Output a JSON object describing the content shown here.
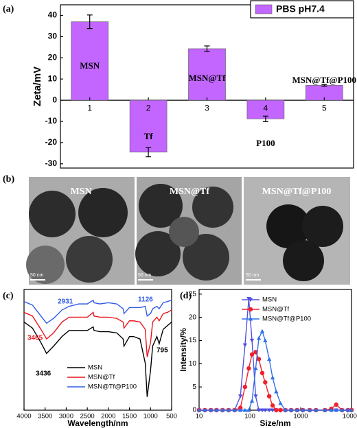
{
  "chart_data": [
    {
      "type": "bar",
      "panel_label": "(a)",
      "ylabel": "Zeta/mV",
      "categories": [
        "1",
        "2",
        "3",
        "4",
        "5"
      ],
      "bar_labels": [
        "MSN",
        "Tf",
        "MSN@Tf",
        "P100",
        "MSN@Tf@P100"
      ],
      "series": [
        {
          "name": "PBS pH7.4",
          "color": "#c266ff",
          "values": [
            37,
            -24.5,
            24.3,
            -8.8,
            7
          ],
          "errors": [
            3.2,
            2.2,
            1.3,
            1.3,
            0.4
          ]
        }
      ],
      "ylim": [
        -32,
        45
      ],
      "yticks": [
        -30,
        -20,
        -10,
        0,
        10,
        20,
        30,
        40
      ],
      "legend": "upper right"
    },
    {
      "type": "line",
      "panel_label": "(c)",
      "xlabel": "Wavelength/nm",
      "x": [
        4000,
        3800,
        3600,
        3465,
        3300,
        3100,
        2931,
        2700,
        2500,
        2360,
        2340,
        2200,
        2000,
        1800,
        1650,
        1630,
        1500,
        1400,
        1250,
        1126,
        1080,
        1000,
        950,
        850,
        795,
        700,
        600,
        500
      ],
      "series": [
        {
          "name": "MSN",
          "color": "#000000",
          "values": [
            73,
            68,
            56,
            47,
            53,
            61,
            66,
            66,
            66,
            69,
            66,
            65,
            65,
            64,
            59,
            53,
            61,
            61,
            59,
            39,
            11,
            33,
            53,
            61,
            55,
            67,
            70,
            73
          ]
        },
        {
          "name": "MSN@Tf",
          "color": "#e8141c",
          "values": [
            81,
            78,
            67,
            59,
            64,
            73,
            77,
            77,
            77,
            81,
            78,
            77,
            77,
            76,
            73,
            68,
            74,
            74,
            73,
            67,
            44,
            56,
            73,
            77,
            74,
            80,
            81,
            83
          ]
        },
        {
          "name": "MSN@Tf@P100",
          "color": "#2f5be8",
          "values": [
            90,
            87,
            78,
            72,
            76,
            83,
            86,
            88,
            88,
            91,
            89,
            88,
            89,
            88,
            84,
            80,
            85,
            85,
            85,
            86,
            78,
            80,
            84,
            86,
            84,
            89,
            90,
            91
          ]
        }
      ],
      "annotations": [
        {
          "text": "2931",
          "color": "#2f5be8"
        },
        {
          "text": "1126",
          "color": "#2f5be8"
        },
        {
          "text": "3465",
          "color": "#e8141c"
        },
        {
          "text": "3436",
          "color": "#000000"
        },
        {
          "text": "795",
          "color": "#000000"
        }
      ],
      "xlim": [
        4000,
        500
      ],
      "xticks": [
        4000,
        3500,
        3000,
        2500,
        2000,
        1500,
        1000,
        500
      ],
      "ylim": [
        0,
        100
      ],
      "legend": "lower left"
    },
    {
      "type": "line",
      "panel_label": "(d)",
      "xlabel": "Size/nm",
      "ylabel": "Intensity/%",
      "xscale": "log",
      "x": [
        10,
        13,
        17,
        22,
        29,
        38,
        50,
        65,
        80,
        95,
        110,
        130,
        150,
        175,
        200,
        240,
        280,
        330,
        400,
        500,
        650,
        850,
        1100,
        1500,
        2000,
        3000,
        4000,
        5000,
        6500,
        8500,
        10000
      ],
      "series": [
        {
          "name": "MSN",
          "color": "#5050e0",
          "marker": "triangle-down",
          "values": [
            0,
            0,
            0,
            0,
            0,
            0,
            0,
            3,
            14,
            24,
            15,
            3,
            0,
            0,
            0,
            0,
            0,
            0,
            0,
            0,
            0,
            0,
            0,
            0,
            0,
            0,
            0,
            0,
            0,
            0,
            0
          ]
        },
        {
          "name": "MSN@Tf",
          "color": "#f0202a",
          "marker": "circle",
          "values": [
            0,
            0,
            0,
            0,
            0,
            0,
            0,
            0.5,
            5,
            9,
            12,
            12.5,
            11,
            8,
            6,
            3,
            1,
            0,
            0,
            0,
            0,
            0,
            0,
            0,
            0,
            0,
            0.3,
            1.2,
            0,
            0,
            0
          ]
        },
        {
          "name": "MSN@Tf@P100",
          "color": "#3070e8",
          "marker": "triangle-up",
          "values": [
            0,
            0,
            0,
            0,
            0,
            0,
            0,
            0,
            0,
            0,
            2,
            9,
            15.5,
            17,
            15,
            11,
            7,
            4,
            1.5,
            0,
            0,
            0,
            0,
            0,
            0,
            0,
            0,
            0,
            0,
            0,
            0
          ]
        }
      ],
      "xlim": [
        10,
        10000
      ],
      "xticks": [
        10,
        100,
        1000,
        10000
      ],
      "ylim": [
        0,
        26
      ],
      "yticks": [
        0,
        5,
        10,
        15,
        20,
        25
      ],
      "legend": "upper right"
    }
  ],
  "micrographs": {
    "panel_label": "(b)",
    "labels": [
      "MSN",
      "MSN@Tf",
      "MSN@Tf@P100"
    ],
    "scale_bar": "50 nm"
  }
}
